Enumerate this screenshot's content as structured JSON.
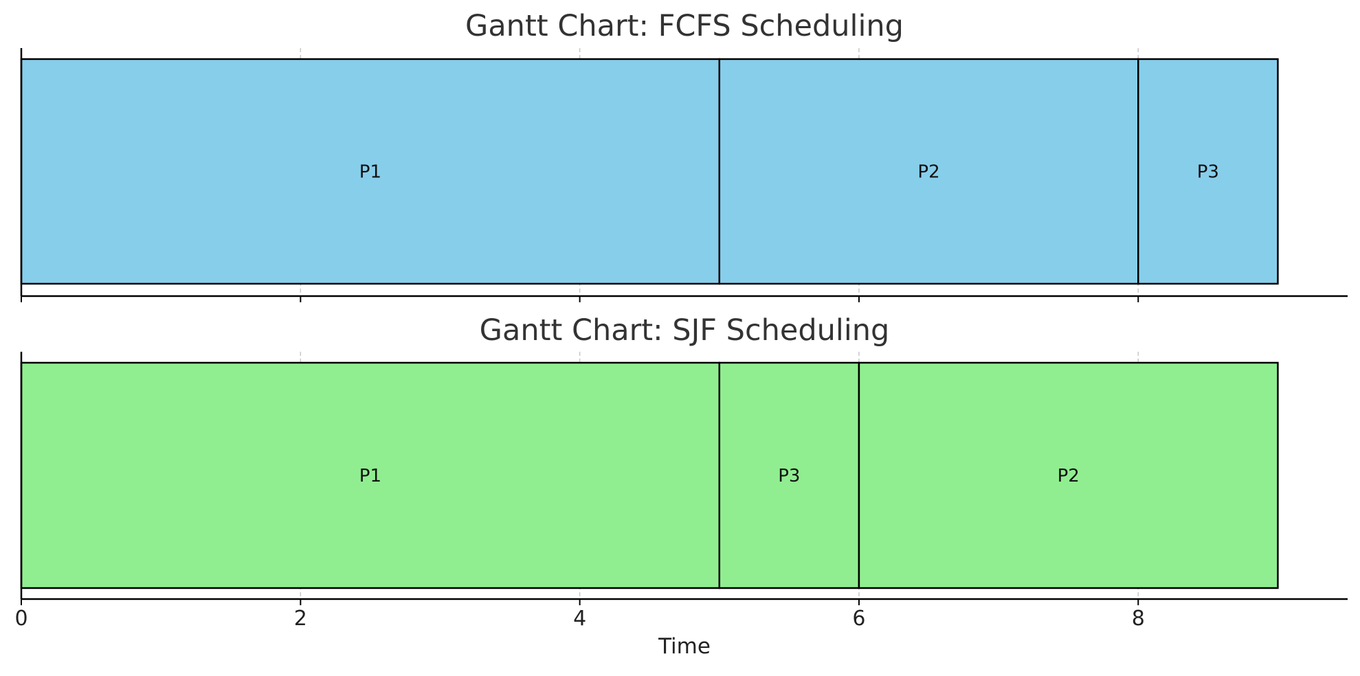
{
  "chart_data": [
    {
      "type": "gantt",
      "title": "Gantt Chart: FCFS Scheduling",
      "bar_color": "#87CEEB",
      "xlim": [
        0,
        9.5
      ],
      "x_ticks": [
        0,
        2,
        4,
        6,
        8
      ],
      "grid": "vertical dashed",
      "tasks": [
        {
          "label": "P1",
          "start": 0,
          "end": 5
        },
        {
          "label": "P2",
          "start": 5,
          "end": 8
        },
        {
          "label": "P3",
          "start": 8,
          "end": 9
        }
      ]
    },
    {
      "type": "gantt",
      "title": "Gantt Chart: SJF Scheduling",
      "bar_color": "#90EE90",
      "xlim": [
        0,
        9.5
      ],
      "x_ticks": [
        0,
        2,
        4,
        6,
        8
      ],
      "xlabel": "Time",
      "grid": "vertical dashed",
      "tasks": [
        {
          "label": "P1",
          "start": 0,
          "end": 5
        },
        {
          "label": "P3",
          "start": 5,
          "end": 6
        },
        {
          "label": "P2",
          "start": 6,
          "end": 9
        }
      ]
    }
  ]
}
